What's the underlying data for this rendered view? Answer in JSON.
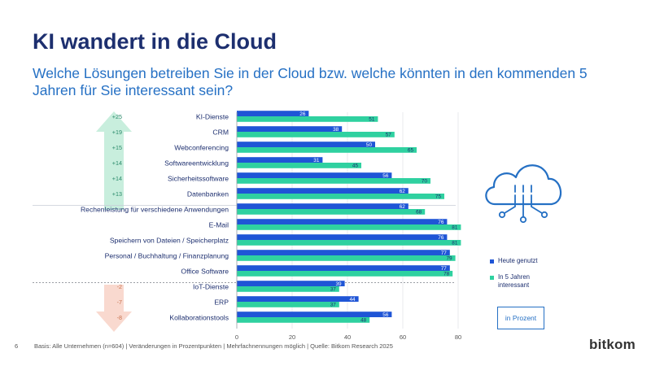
{
  "header": {
    "title": "KI wandert in die Cloud",
    "subtitle": "Welche Lösungen betreiben Sie in der Cloud bzw. welche könnten in den kommenden 5 Jahren für Sie interessant sein?"
  },
  "footer": {
    "page_number": "6",
    "note": "Basis: Alle Unternehmen (n=604) | Veränderungen in Prozentpunkten | Mehrfachnennungen möglich | Quelle: Bitkom Research 2025",
    "logo_text": "bitkom"
  },
  "legend": {
    "today_label": "Heute genutzt",
    "future_label": "In 5 Jahren interessant",
    "unit_label": "in Prozent"
  },
  "icons": {
    "cloud": "cloud-network-icon"
  },
  "colors": {
    "today": "#1f55d6",
    "future": "#2fd1a0",
    "up_arrow": "#c8eedd",
    "down_arrow": "#f9d9cf",
    "up_text": "#2a8a6a",
    "down_text": "#c9734f",
    "title": "#1d2f6f",
    "subtitle": "#2570c4"
  },
  "chart_data": {
    "type": "bar",
    "orientation": "horizontal",
    "title": "Welche Lösungen betreiben Sie in der Cloud bzw. welche könnten in den kommenden 5 Jahren für Sie interessant sein?",
    "xlabel": "",
    "ylabel": "",
    "xlim": [
      0,
      80
    ],
    "xticks": [
      0,
      20,
      40,
      60,
      80
    ],
    "categories": [
      "KI-Dienste",
      "CRM",
      "Webconferencing",
      "Softwareentwicklung",
      "Sicherheitssoftware",
      "Datenbanken",
      "Rechenleistung für verschiedene Anwendungen",
      "E-Mail",
      "Speichern von Dateien / Speicherplatz",
      "Personal / Buchhaltung / Finanzplanung",
      "Office Software",
      "IoT-Dienste",
      "ERP",
      "Kollaborationstools"
    ],
    "series": [
      {
        "name": "Heute genutzt",
        "values": [
          26,
          38,
          50,
          31,
          56,
          62,
          62,
          76,
          76,
          77,
          77,
          39,
          44,
          56
        ]
      },
      {
        "name": "In 5 Jahren interessant",
        "values": [
          51,
          57,
          65,
          45,
          70,
          75,
          68,
          81,
          81,
          79,
          78,
          37,
          37,
          48
        ]
      }
    ],
    "changes": [
      {
        "category": "KI-Dienste",
        "label": "+25"
      },
      {
        "category": "CRM",
        "label": "+19"
      },
      {
        "category": "Webconferencing",
        "label": "+15"
      },
      {
        "category": "Softwareentwicklung",
        "label": "+14"
      },
      {
        "category": "Sicherheitssoftware",
        "label": "+14"
      },
      {
        "category": "Datenbanken",
        "label": "+13"
      },
      {
        "category": "IoT-Dienste",
        "label": "-2"
      },
      {
        "category": "ERP",
        "label": "-7"
      },
      {
        "category": "Kollaborationstools",
        "label": "-8"
      }
    ],
    "legend": [
      "Heute genutzt",
      "In 5 Jahren interessant"
    ],
    "legend_position": "right"
  }
}
